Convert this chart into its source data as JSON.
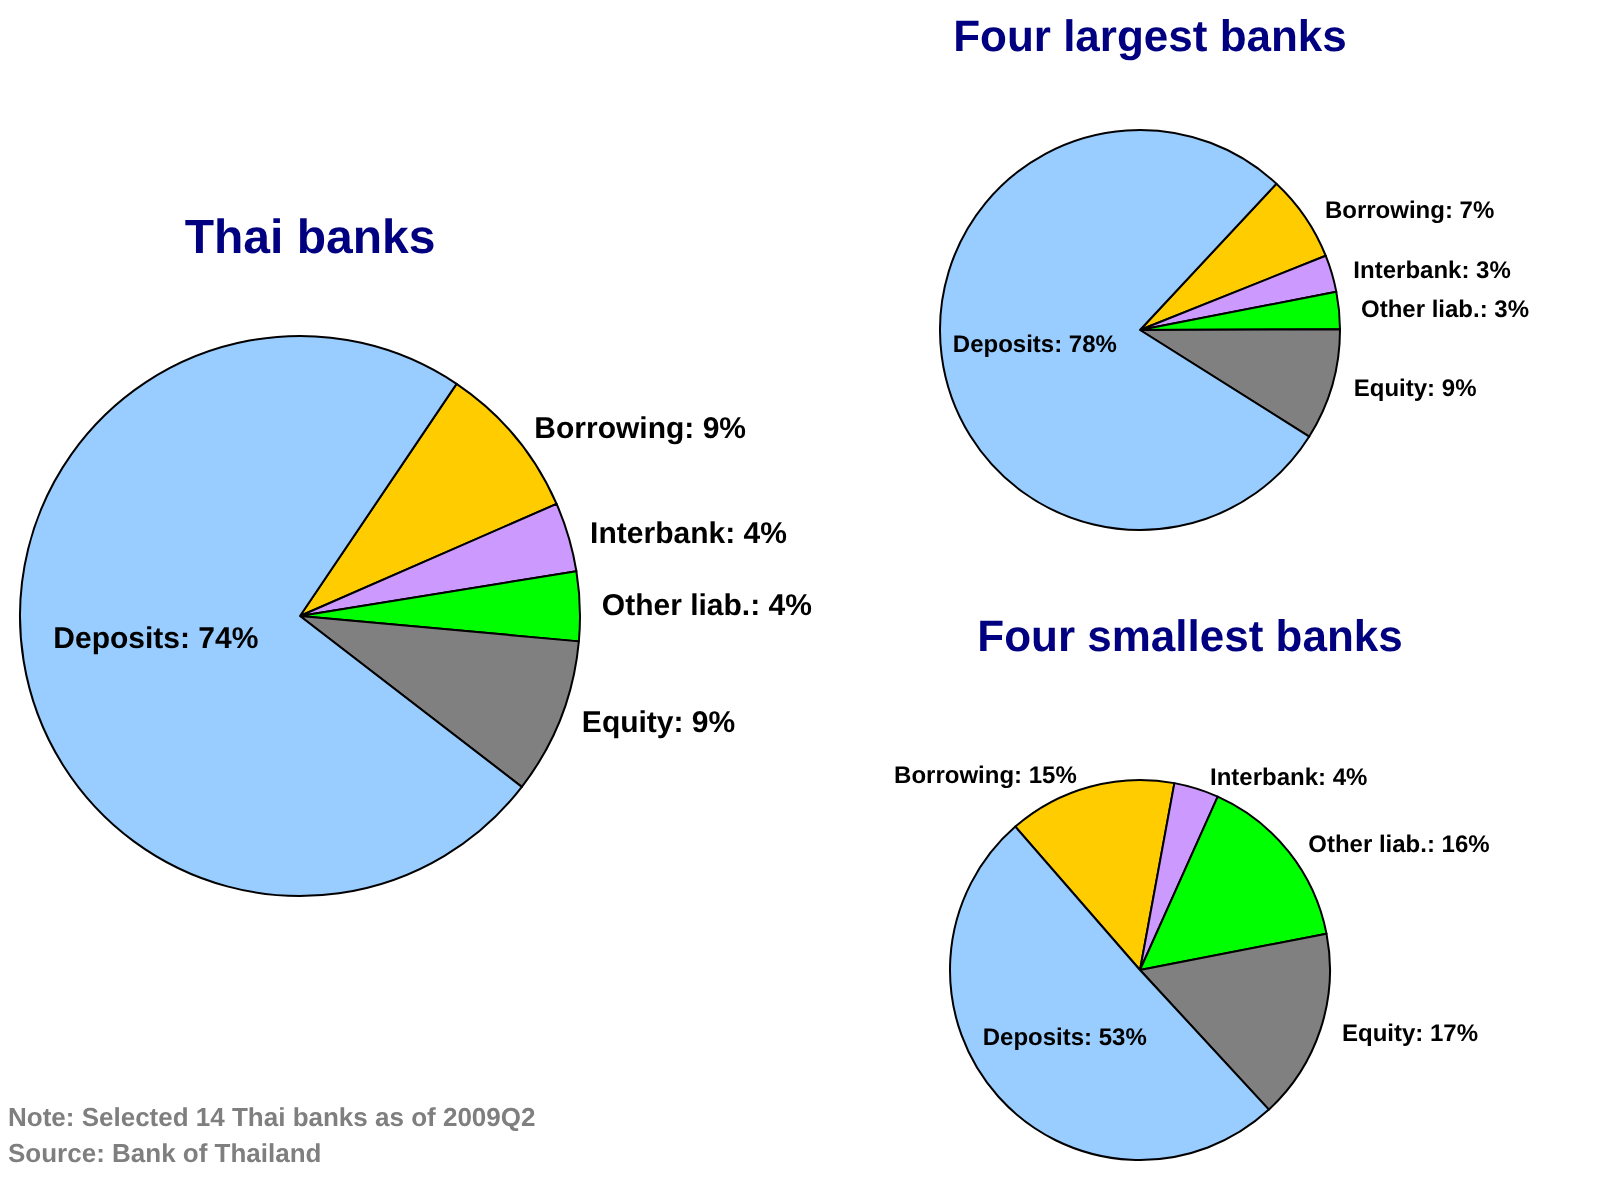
{
  "chart_data": [
    {
      "type": "pie",
      "title": "Thai banks",
      "categories": [
        "Borrowing",
        "Interbank",
        "Other liab.",
        "Equity",
        "Deposits"
      ],
      "values": [
        9,
        4,
        4,
        9,
        74
      ],
      "value_labels": [
        "9%",
        "4%",
        "4%",
        "9%",
        "74%"
      ],
      "colors": [
        "#ffcc00",
        "#cc99ff",
        "#00ff00",
        "#808080",
        "#99ccff"
      ],
      "annotations": [
        "Note: Selected 14 Thai banks as of 2009Q2",
        "Source: Bank of Thailand"
      ]
    },
    {
      "type": "pie",
      "title": "Four largest banks",
      "categories": [
        "Borrowing",
        "Interbank",
        "Other liab.",
        "Equity",
        "Deposits"
      ],
      "values": [
        7,
        3,
        3,
        9,
        78
      ],
      "value_labels": [
        "7%",
        "3%",
        "3%",
        "9%",
        "78%"
      ],
      "colors": [
        "#ffcc00",
        "#cc99ff",
        "#00ff00",
        "#808080",
        "#99ccff"
      ]
    },
    {
      "type": "pie",
      "title": "Four smallest banks",
      "categories": [
        "Borrowing",
        "Interbank",
        "Other liab.",
        "Equity",
        "Deposits"
      ],
      "values": [
        15,
        4,
        16,
        17,
        53
      ],
      "value_labels": [
        "15%",
        "4%",
        "16%",
        "17%",
        "53%"
      ],
      "colors": [
        "#ffcc00",
        "#cc99ff",
        "#00ff00",
        "#808080",
        "#99ccff"
      ]
    }
  ]
}
